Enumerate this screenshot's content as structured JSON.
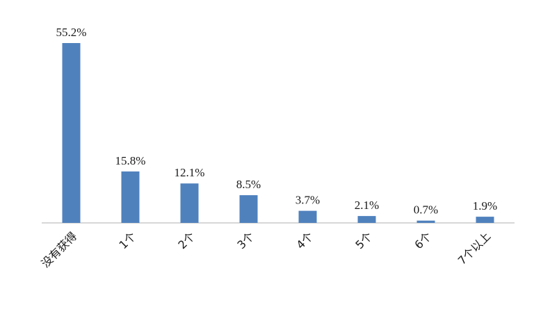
{
  "chart_data": {
    "type": "bar",
    "categories": [
      "没有获得",
      "1个",
      "2个",
      "3个",
      "4个",
      "5个",
      "6个",
      "7个以上"
    ],
    "values": [
      55.2,
      15.8,
      12.1,
      8.5,
      3.7,
      2.1,
      0.7,
      1.9
    ],
    "value_labels": [
      "55.2%",
      "15.8%",
      "12.1%",
      "8.5%",
      "3.7%",
      "2.1%",
      "0.7%",
      "1.9%"
    ],
    "unit": "%",
    "ylim": [
      0,
      55.2
    ],
    "grid": false,
    "legend": "none",
    "bar_color": "#4F81BD",
    "axis_color": "#BFBFBF"
  }
}
